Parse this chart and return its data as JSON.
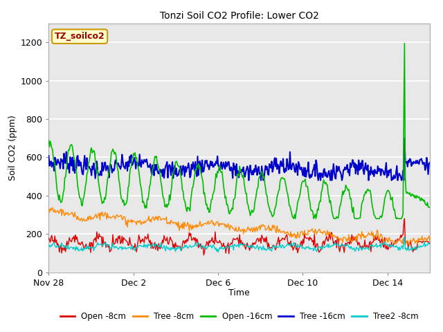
{
  "title": "Tonzi Soil CO2 Profile: Lower CO2",
  "xlabel": "Time",
  "ylabel": "Soil CO2 (ppm)",
  "watermark": "TZ_soilco2",
  "ylim": [
    0,
    1300
  ],
  "yticks": [
    0,
    200,
    400,
    600,
    800,
    1000,
    1200
  ],
  "xtick_labels": [
    "Nov 28",
    "Dec 2",
    "Dec 6",
    "Dec 10",
    "Dec 14"
  ],
  "xtick_positions": [
    0,
    4,
    8,
    12,
    16
  ],
  "legend_labels": [
    "Open -8cm",
    "Tree -8cm",
    "Open -16cm",
    "Tree -16cm",
    "Tree2 -8cm"
  ],
  "line_colors": [
    "#dd0000",
    "#ff8800",
    "#00bb00",
    "#0000cc",
    "#00cccc"
  ],
  "line_widths": [
    1.0,
    1.0,
    1.2,
    1.5,
    1.0
  ],
  "fig_bg": "#ffffff",
  "axes_bg": "#e8e8e8",
  "grid_color": "#ffffff",
  "n_days": 18,
  "n_points": 500,
  "spike_day": 16.8
}
